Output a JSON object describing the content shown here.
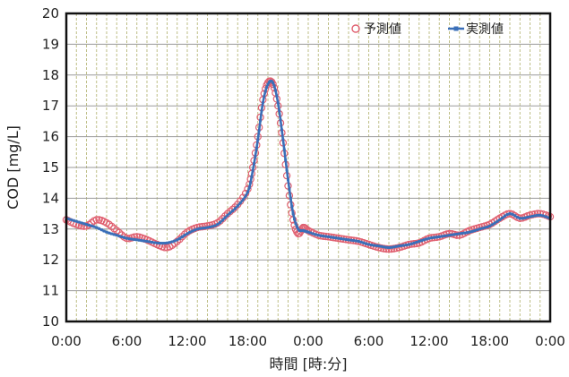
{
  "chart_data": {
    "type": "line",
    "xlabel": "時間 [時:分]",
    "ylabel": "COD [mg/L]",
    "x_ticks": [
      "0:00",
      "6:00",
      "12:00",
      "18:00",
      "0:00",
      "6:00",
      "12:00",
      "18:00",
      "0:00"
    ],
    "x_range_hours": [
      0,
      48
    ],
    "ylim": [
      10,
      20
    ],
    "y_ticks": [
      10,
      11,
      12,
      13,
      14,
      15,
      16,
      17,
      18,
      19,
      20
    ],
    "grid": {
      "horizontal": true,
      "vertical_dashed": true
    },
    "legend_position": "top-right",
    "series": [
      {
        "name": "予測値",
        "marker": "hollow-circle",
        "color": "#e06070",
        "x": [
          0,
          1,
          2,
          3,
          4,
          5,
          6,
          7,
          8,
          9,
          10,
          11,
          12,
          13,
          14,
          15,
          16,
          17,
          18,
          18.5,
          19,
          19.5,
          20,
          20.5,
          21,
          21.5,
          22,
          22.5,
          23,
          23.5,
          24,
          25,
          26,
          27,
          28,
          29,
          30,
          31,
          32,
          33,
          34,
          35,
          36,
          37,
          38,
          39,
          40,
          41,
          42,
          43,
          44,
          45,
          46,
          47,
          48
        ],
        "values": [
          13.3,
          13.15,
          13.1,
          13.3,
          13.2,
          12.95,
          12.7,
          12.75,
          12.65,
          12.5,
          12.4,
          12.6,
          12.9,
          13.05,
          13.1,
          13.2,
          13.5,
          13.8,
          14.3,
          15.0,
          16.0,
          17.2,
          17.75,
          17.7,
          17.0,
          15.8,
          14.4,
          13.3,
          12.85,
          13.05,
          12.95,
          12.8,
          12.75,
          12.7,
          12.65,
          12.6,
          12.5,
          12.4,
          12.35,
          12.4,
          12.5,
          12.55,
          12.7,
          12.75,
          12.85,
          12.8,
          12.95,
          13.05,
          13.15,
          13.35,
          13.5,
          13.35,
          13.45,
          13.5,
          13.4
        ]
      },
      {
        "name": "実測値",
        "marker": "small-square",
        "color": "#3a6fb8",
        "x": [
          0,
          1,
          2,
          3,
          4,
          5,
          6,
          7,
          8,
          9,
          10,
          11,
          12,
          13,
          14,
          15,
          16,
          17,
          18,
          18.5,
          19,
          19.5,
          20,
          20.5,
          21,
          21.5,
          22,
          22.5,
          23,
          23.5,
          24,
          25,
          26,
          27,
          28,
          29,
          30,
          31,
          32,
          33,
          34,
          35,
          36,
          37,
          38,
          39,
          40,
          41,
          42,
          43,
          44,
          45,
          46,
          47,
          48
        ],
        "values": [
          13.35,
          13.25,
          13.15,
          13.05,
          12.9,
          12.8,
          12.7,
          12.65,
          12.6,
          12.55,
          12.55,
          12.65,
          12.85,
          13.0,
          13.05,
          13.15,
          13.45,
          13.75,
          14.2,
          14.9,
          15.9,
          17.1,
          17.7,
          17.75,
          17.1,
          15.9,
          14.6,
          13.5,
          13.0,
          12.95,
          12.9,
          12.8,
          12.75,
          12.7,
          12.65,
          12.6,
          12.5,
          12.45,
          12.4,
          12.45,
          12.5,
          12.6,
          12.7,
          12.75,
          12.8,
          12.85,
          12.9,
          13.0,
          13.1,
          13.3,
          13.5,
          13.35,
          13.4,
          13.45,
          13.35
        ]
      }
    ]
  }
}
